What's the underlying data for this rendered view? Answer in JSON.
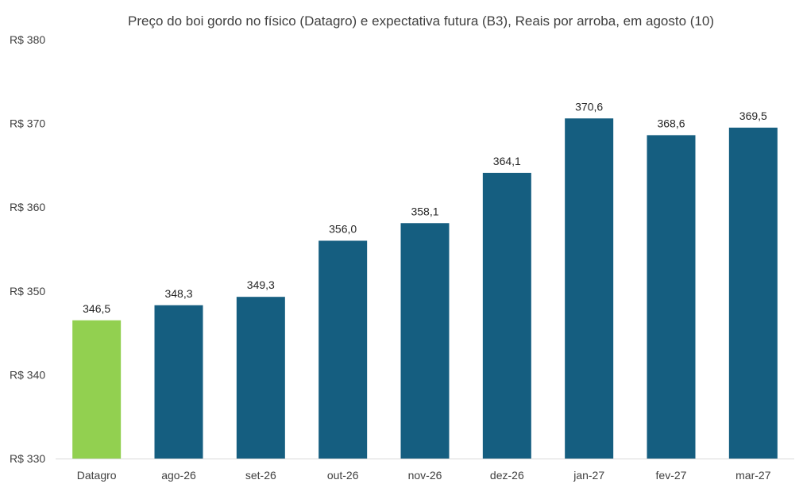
{
  "chart_data": {
    "type": "bar",
    "title": "Preço do boi gordo no físico (Datagro)  e expectativa futura (B3), Reais por arroba, em agosto (10)",
    "xlabel": "",
    "ylabel": "",
    "categories": [
      "Datagro",
      "ago-26",
      "set-26",
      "out-26",
      "nov-26",
      "dez-26",
      "jan-27",
      "fev-27",
      "mar-27"
    ],
    "values": [
      346.5,
      348.3,
      349.3,
      356.0,
      358.1,
      364.1,
      370.6,
      368.6,
      369.5
    ],
    "value_labels": [
      "346,5",
      "348,3",
      "349,3",
      "356,0",
      "358,1",
      "364,1",
      "370,6",
      "368,6",
      "369,5"
    ],
    "ylim": [
      330,
      380
    ],
    "y_ticks": [
      330,
      340,
      350,
      360,
      370,
      380
    ],
    "y_tick_labels": [
      "R$ 330",
      "R$ 340",
      "R$ 350",
      "R$ 360",
      "R$ 370",
      "R$ 380"
    ],
    "grid": false,
    "legend": "none",
    "colors": {
      "highlight": "#92d050",
      "bar": "#155e80",
      "axis": "#d9d9d9"
    },
    "bar_colors": [
      "highlight",
      "bar",
      "bar",
      "bar",
      "bar",
      "bar",
      "bar",
      "bar",
      "bar"
    ]
  }
}
